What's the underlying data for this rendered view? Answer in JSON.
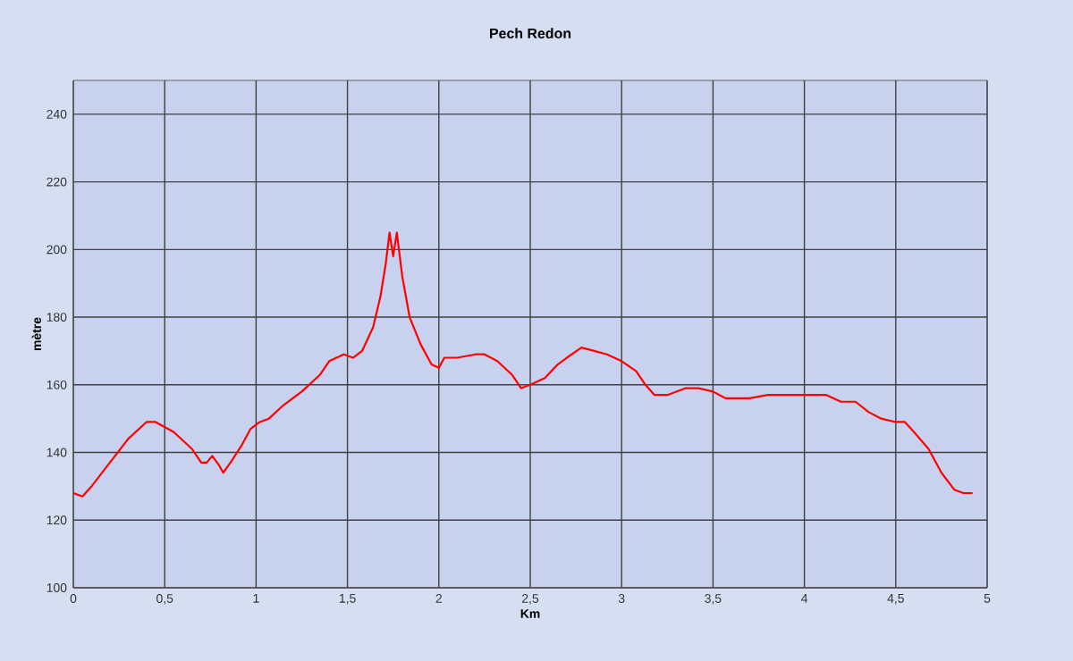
{
  "chart_data": {
    "type": "line",
    "title": "Pech Redon",
    "xlabel": "Km",
    "ylabel": "mètre",
    "xlim": [
      0,
      5
    ],
    "ylim": [
      100,
      250
    ],
    "xticks": [
      0,
      {
        "value": 0.5,
        "label": "0,5"
      },
      1,
      {
        "value": 1.5,
        "label": "1,5"
      },
      2,
      {
        "value": 2.5,
        "label": "2,5"
      },
      3,
      {
        "value": 3.5,
        "label": "3,5"
      },
      4,
      {
        "value": 4.5,
        "label": "4,5"
      },
      5
    ],
    "yticks": [
      100,
      120,
      140,
      160,
      180,
      200,
      220,
      240
    ],
    "grid": true,
    "marker": "none",
    "line_style": "solid",
    "series": [
      {
        "color": "#ff0000",
        "x": [
          0,
          0.05,
          0.1,
          0.2,
          0.3,
          0.4,
          0.45,
          0.55,
          0.65,
          0.7,
          0.73,
          0.76,
          0.8,
          0.82,
          0.86,
          0.92,
          0.97,
          1.02,
          1.07,
          1.15,
          1.25,
          1.35,
          1.4,
          1.48,
          1.53,
          1.58,
          1.64,
          1.68,
          1.71,
          1.73,
          1.75,
          1.77,
          1.8,
          1.84,
          1.9,
          1.96,
          2.0,
          2.03,
          2.1,
          2.2,
          2.25,
          2.32,
          2.4,
          2.45,
          2.5,
          2.58,
          2.65,
          2.7,
          2.78,
          2.85,
          2.92,
          3.0,
          3.08,
          3.13,
          3.18,
          3.25,
          3.35,
          3.42,
          3.5,
          3.57,
          3.7,
          3.8,
          3.9,
          4.0,
          4.12,
          4.2,
          4.28,
          4.35,
          4.42,
          4.5,
          4.55,
          4.6,
          4.68,
          4.75,
          4.82,
          4.87,
          4.92
        ],
        "values": [
          128,
          127,
          130,
          137,
          144,
          149,
          149,
          146,
          141,
          137,
          137,
          139,
          136,
          134,
          137,
          142,
          147,
          149,
          150,
          154,
          158,
          163,
          167,
          169,
          168,
          170,
          177,
          186,
          196,
          205,
          198,
          205,
          192,
          180,
          172,
          166,
          165,
          168,
          168,
          169,
          169,
          167,
          163,
          159,
          160,
          162,
          166,
          168,
          171,
          170,
          169,
          167,
          164,
          160,
          157,
          157,
          159,
          159,
          158,
          156,
          156,
          157,
          157,
          157,
          157,
          155,
          155,
          152,
          150,
          149,
          149,
          146,
          141,
          134,
          129,
          128,
          128
        ]
      }
    ]
  }
}
